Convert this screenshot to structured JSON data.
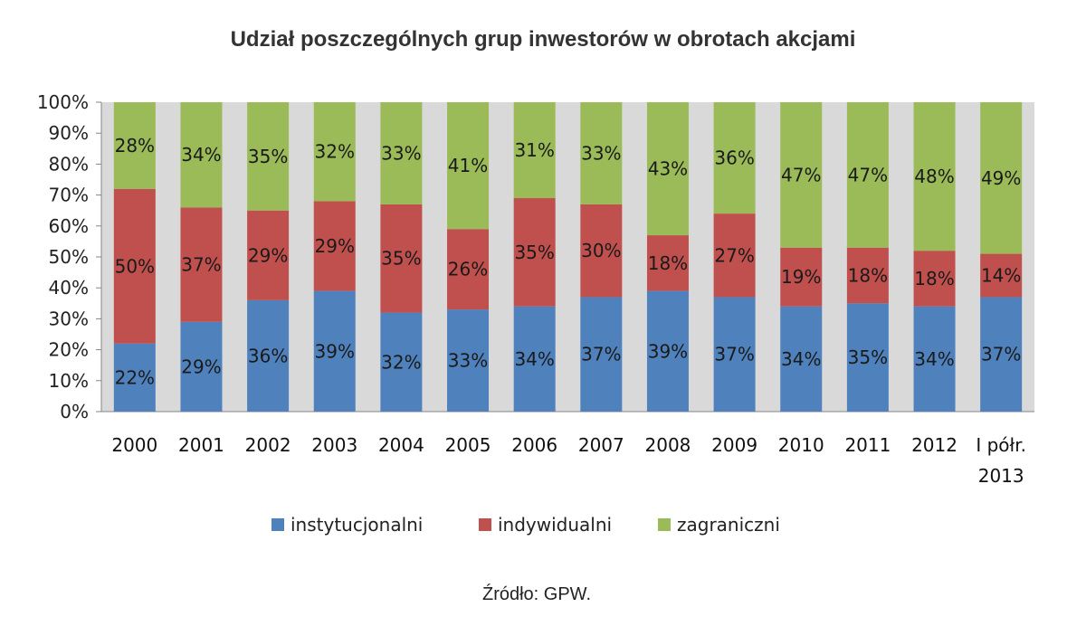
{
  "chart_data": {
    "type": "bar",
    "stacked": true,
    "title": "Udział poszczególnych grup inwestorów w obrotach akcjami",
    "source": "Źródło: GPW.",
    "categories": [
      "2000",
      "2001",
      "2002",
      "2003",
      "2004",
      "2005",
      "2006",
      "2007",
      "2008",
      "2009",
      "2010",
      "2011",
      "2012",
      "I półr.\n2013"
    ],
    "series": [
      {
        "name": "instytucjonalni",
        "color": "#4f81bd",
        "values": [
          22,
          29,
          36,
          39,
          32,
          33,
          34,
          37,
          39,
          37,
          34,
          35,
          34,
          37
        ]
      },
      {
        "name": "indywidualni",
        "color": "#c0504d",
        "values": [
          50,
          37,
          29,
          29,
          35,
          26,
          35,
          30,
          18,
          27,
          19,
          18,
          18,
          14
        ]
      },
      {
        "name": "zagraniczni",
        "color": "#9bbb59",
        "values": [
          28,
          34,
          35,
          32,
          33,
          41,
          31,
          33,
          43,
          36,
          47,
          47,
          48,
          49
        ]
      }
    ],
    "ylim": [
      0,
      100
    ],
    "yticks": [
      "0%",
      "10%",
      "20%",
      "30%",
      "40%",
      "50%",
      "60%",
      "70%",
      "80%",
      "90%",
      "100%"
    ],
    "grid": false,
    "legend_position": "bottom",
    "plot_background": "#d9d9d9"
  }
}
